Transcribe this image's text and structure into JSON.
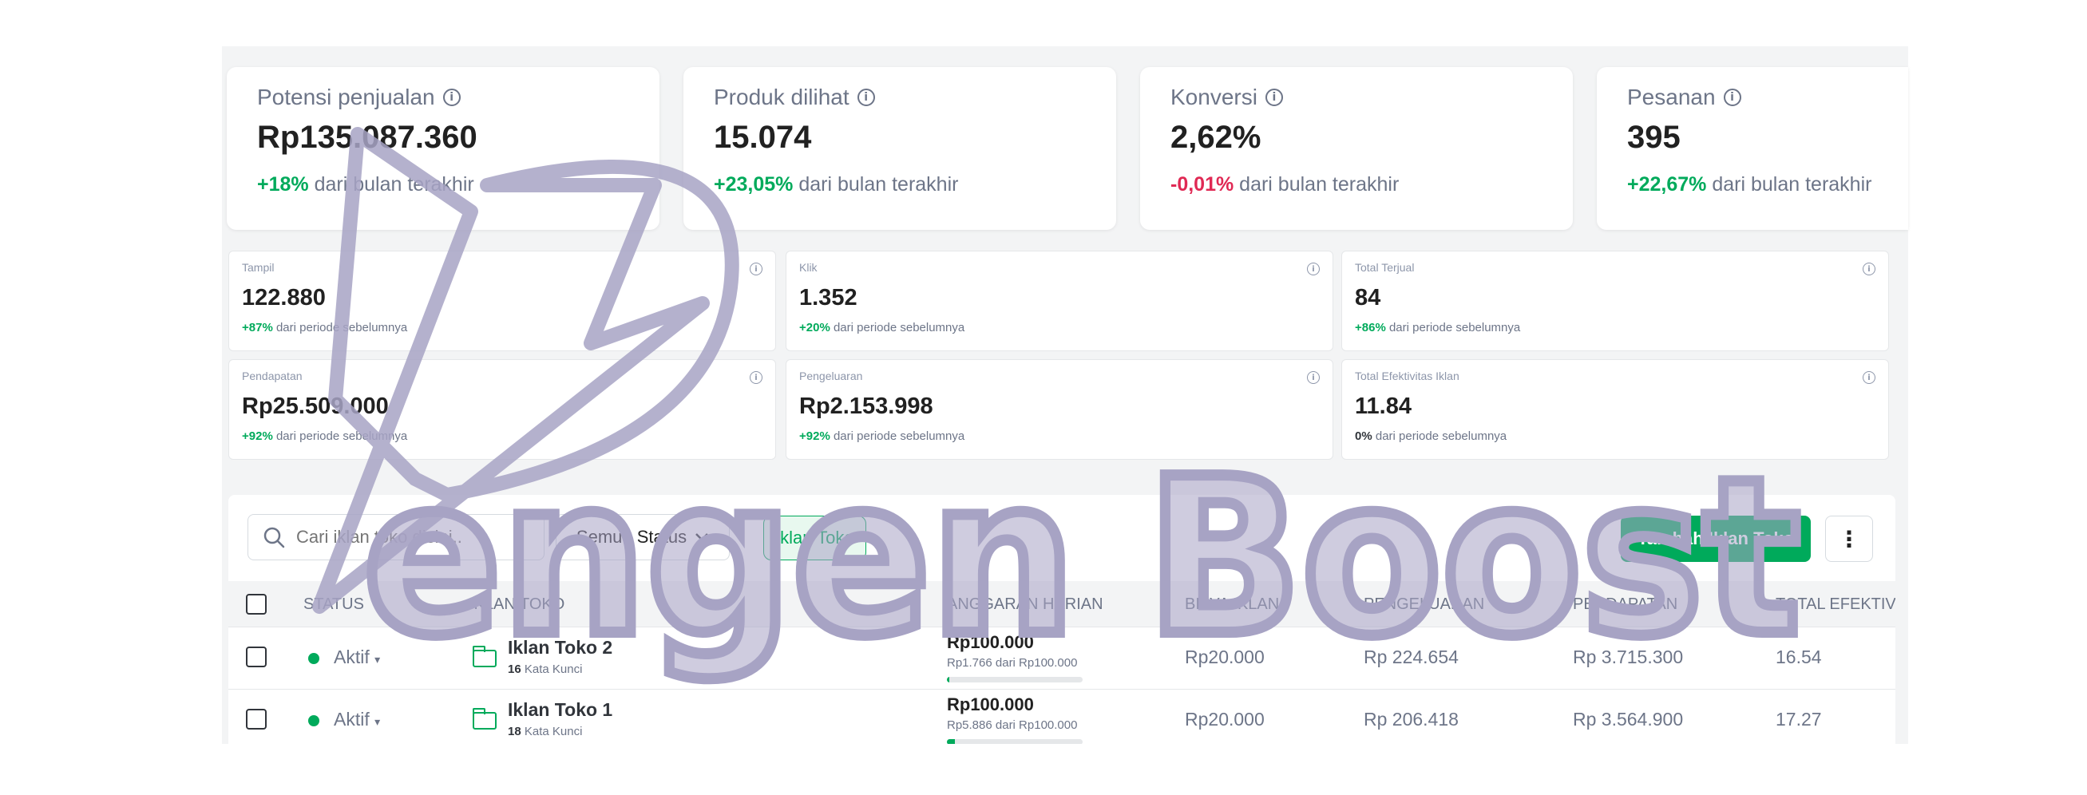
{
  "kpis": [
    {
      "title": "Potensi penjualan",
      "value": "Rp135.087.360",
      "delta": "+18%",
      "delta_type": "pos",
      "delta_text": "dari bulan terakhir"
    },
    {
      "title": "Produk dilihat",
      "value": "15.074",
      "delta": "+23,05%",
      "delta_type": "pos",
      "delta_text": "dari bulan terakhir"
    },
    {
      "title": "Konversi",
      "value": "2,62%",
      "delta": "-0,01%",
      "delta_type": "neg",
      "delta_text": "dari bulan terakhir"
    },
    {
      "title": "Pesanan",
      "value": "395",
      "delta": "+22,67%",
      "delta_type": "pos",
      "delta_text": "dari bulan terakhir"
    }
  ],
  "metrics": [
    {
      "label": "Tampil",
      "value": "122.880",
      "delta": "+87%",
      "delta_text": "dari periode sebelumnya"
    },
    {
      "label": "Klik",
      "value": "1.352",
      "delta": "+20%",
      "delta_text": "dari periode sebelumnya"
    },
    {
      "label": "Total Terjual",
      "value": "84",
      "delta": "+86%",
      "delta_text": "dari periode sebelumnya"
    },
    {
      "label": "Pendapatan",
      "value": "Rp25.509.000",
      "delta": "+92%",
      "delta_text": "dari periode sebelumnya"
    },
    {
      "label": "Pengeluaran",
      "value": "Rp2.153.998",
      "delta": "+92%",
      "delta_text": "dari periode sebelumnya"
    },
    {
      "label": "Total Efektivitas Iklan",
      "value": "11.84",
      "delta": "0%",
      "delta_text": "dari periode sebelumnya"
    }
  ],
  "toolbar": {
    "search_placeholder": "Cari iklan toko disini..",
    "status_filter": "Semua Status",
    "chip": "Iklan Toko",
    "add_button": "Tambah Iklan Toko",
    "more": "⋮"
  },
  "table": {
    "columns": [
      "STATUS",
      "IKLAN TOKO",
      "ANGGARAN HARIAN",
      "BIAYA IKLAN",
      "PENGELUARAN",
      "PENDAPATAN",
      "TOTAL EFEKTIVIT"
    ],
    "rows": [
      {
        "status": "Aktif",
        "name": "Iklan Toko 2",
        "keywords_count": "16",
        "keywords_label": "Kata Kunci",
        "budget": "Rp100.000",
        "budget_used": "Rp1.766 dari Rp100.000",
        "budget_fraction": 0.018,
        "cost": "Rp20.000",
        "spend": "Rp 224.654",
        "revenue": "Rp 3.715.300",
        "effectiveness": "16.54"
      },
      {
        "status": "Aktif",
        "name": "Iklan Toko 1",
        "keywords_count": "18",
        "keywords_label": "Kata Kunci",
        "budget": "Rp100.000",
        "budget_used": "Rp5.886 dari Rp100.000",
        "budget_fraction": 0.059,
        "cost": "Rp20.000",
        "spend": "Rp 206.418",
        "revenue": "Rp 3.564.900",
        "effectiveness": "17.27"
      }
    ]
  },
  "watermark": {
    "text": "engen Boost"
  },
  "colors": {
    "accent": "#00aa5b",
    "negative": "#e02954",
    "watermark": "#a7a3c4"
  }
}
